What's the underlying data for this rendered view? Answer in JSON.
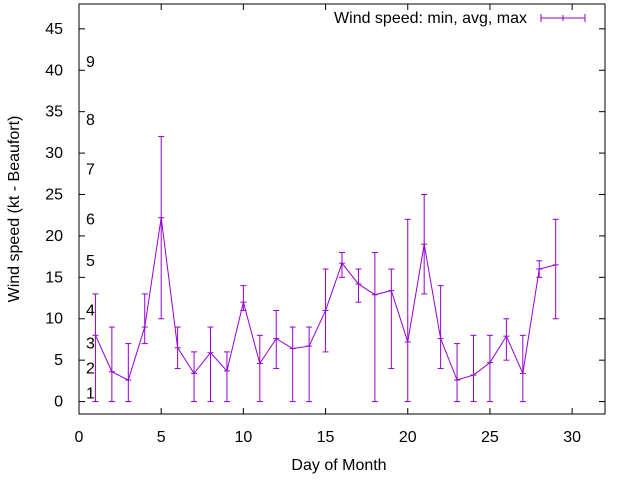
{
  "chart_data": {
    "type": "line",
    "title": "",
    "xlabel": "Day of Month",
    "ylabel": "Wind speed (kt - Beaufort)",
    "xlim": [
      0,
      32
    ],
    "ylim": [
      -1.5,
      48
    ],
    "xticks": [
      0,
      5,
      10,
      15,
      20,
      25,
      30
    ],
    "yticks": [
      0,
      5,
      10,
      15,
      20,
      25,
      30,
      35,
      40,
      45
    ],
    "beaufort_labels": [
      {
        "label": "1",
        "value": 1
      },
      {
        "label": "2",
        "value": 4
      },
      {
        "label": "3",
        "value": 7
      },
      {
        "label": "4",
        "value": 11
      },
      {
        "label": "5",
        "value": 17
      },
      {
        "label": "6",
        "value": 22
      },
      {
        "label": "7",
        "value": 28
      },
      {
        "label": "8",
        "value": 34
      },
      {
        "label": "9",
        "value": 41
      }
    ],
    "legend": {
      "label": "Wind speed: min, avg, max",
      "position": "top-right"
    },
    "series": [
      {
        "name": "Wind speed: min, avg, max",
        "color": "#9400d3",
        "points": [
          {
            "day": 1,
            "min": 0,
            "avg": 8,
            "max": 13
          },
          {
            "day": 2,
            "min": 0,
            "avg": 3.6,
            "max": 9
          },
          {
            "day": 3,
            "min": 0,
            "avg": 2.6,
            "max": 7
          },
          {
            "day": 4,
            "min": 7,
            "avg": 9,
            "max": 13
          },
          {
            "day": 5,
            "min": 10,
            "avg": 22.2,
            "max": 32
          },
          {
            "day": 6,
            "min": 4,
            "avg": 6.5,
            "max": 9
          },
          {
            "day": 7,
            "min": 0,
            "avg": 3.4,
            "max": 6
          },
          {
            "day": 8,
            "min": 0,
            "avg": 5.9,
            "max": 9
          },
          {
            "day": 9,
            "min": 0,
            "avg": 3.7,
            "max": 6
          },
          {
            "day": 10,
            "min": 11,
            "avg": 12,
            "max": 14
          },
          {
            "day": 11,
            "min": 0,
            "avg": 4.6,
            "max": 8
          },
          {
            "day": 12,
            "min": 4,
            "avg": 7.6,
            "max": 11
          },
          {
            "day": 13,
            "min": 0,
            "avg": 6.4,
            "max": 9
          },
          {
            "day": 14,
            "min": 0,
            "avg": 6.7,
            "max": 9
          },
          {
            "day": 15,
            "min": 6,
            "avg": 11,
            "max": 16
          },
          {
            "day": 16,
            "min": 15,
            "avg": 16.7,
            "max": 18
          },
          {
            "day": 17,
            "min": 12,
            "avg": 14.2,
            "max": 16
          },
          {
            "day": 18,
            "min": 0,
            "avg": 12.9,
            "max": 18
          },
          {
            "day": 19,
            "min": 4,
            "avg": 13.4,
            "max": 16
          },
          {
            "day": 20,
            "min": 0,
            "avg": 7.2,
            "max": 22
          },
          {
            "day": 21,
            "min": 13,
            "avg": 19,
            "max": 25
          },
          {
            "day": 22,
            "min": 4,
            "avg": 7.6,
            "max": 14
          },
          {
            "day": 23,
            "min": 0,
            "avg": 2.6,
            "max": 7
          },
          {
            "day": 24,
            "min": 0,
            "avg": 3.2,
            "max": 8
          },
          {
            "day": 25,
            "min": 0,
            "avg": 4.7,
            "max": 8
          },
          {
            "day": 26,
            "min": 5,
            "avg": 7.9,
            "max": 10
          },
          {
            "day": 27,
            "min": 0,
            "avg": 3.4,
            "max": 8
          },
          {
            "day": 28,
            "min": 15,
            "avg": 16,
            "max": 17
          },
          {
            "day": 29,
            "min": 10,
            "avg": 16.5,
            "max": 22
          }
        ]
      }
    ]
  }
}
